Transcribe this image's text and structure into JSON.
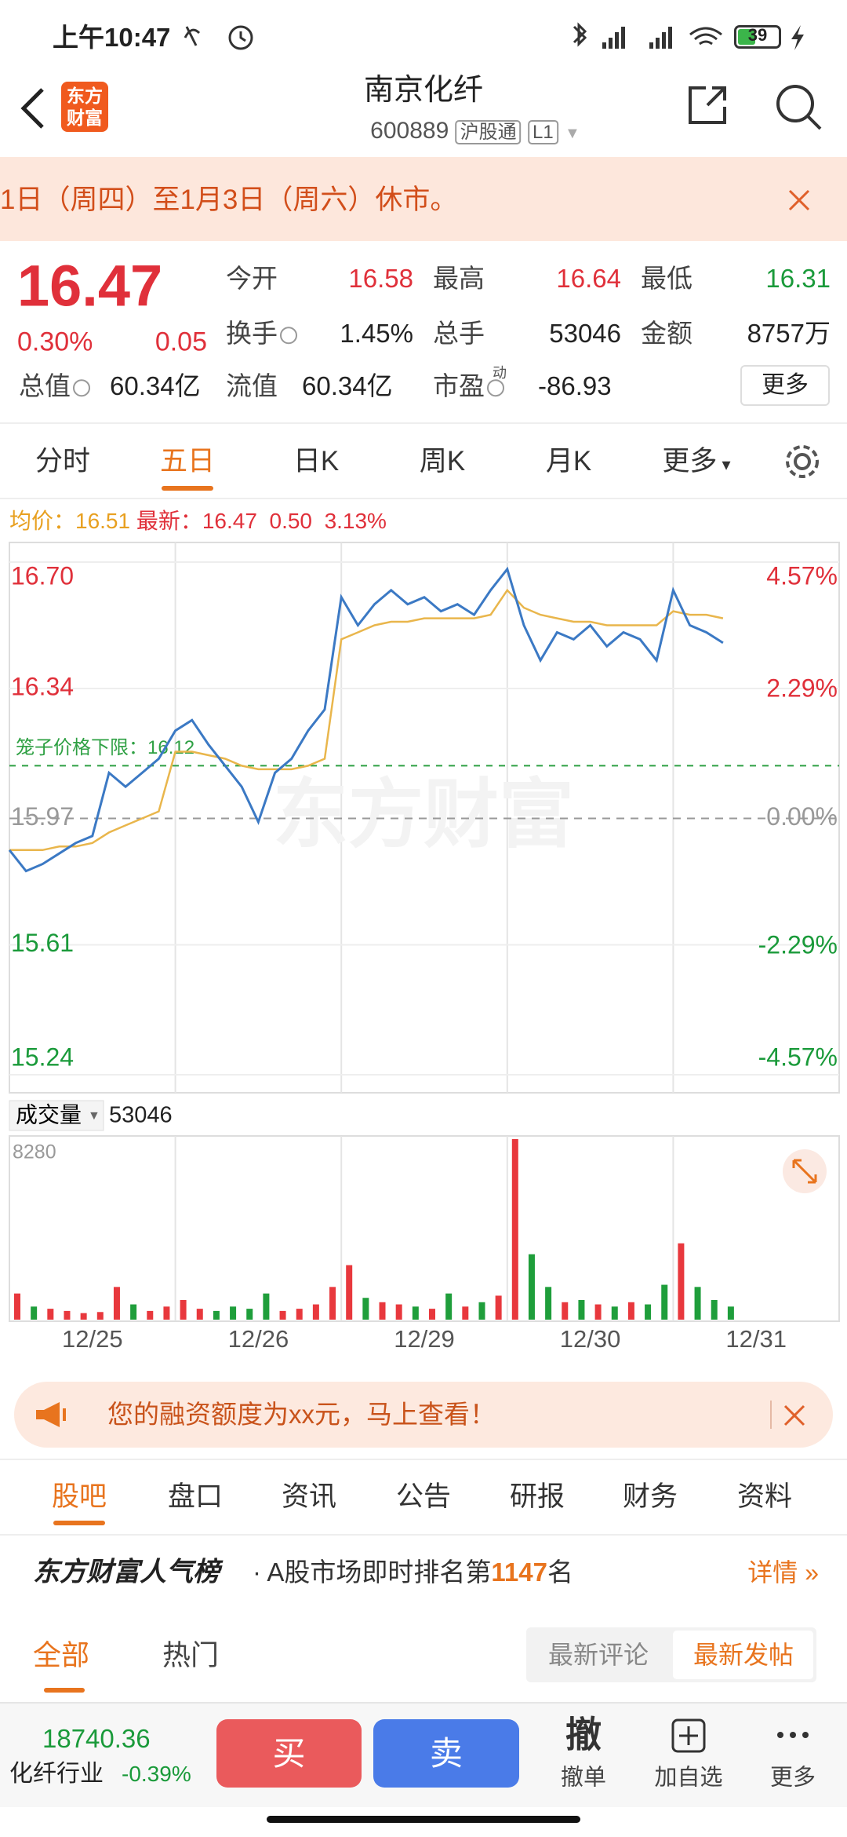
{
  "status_bar": {
    "time": "上午10:47",
    "battery": "39"
  },
  "header": {
    "logo": "东方财富",
    "title": "南京化纤",
    "code": "600889",
    "badge": "沪股通",
    "level": "L1"
  },
  "notice": {
    "text": "1日（周四）至1月3日（周六）休市。"
  },
  "quote": {
    "price": "16.47",
    "change_pct": "0.30%",
    "change": "0.05",
    "stats": [
      [
        "今开",
        "16.58"
      ],
      [
        "最高",
        "16.64"
      ],
      [
        "最低",
        "16.31"
      ],
      [
        "换手",
        "1.45%"
      ],
      [
        "总手",
        "53046"
      ],
      [
        "金额",
        "8757万"
      ],
      [
        "总值",
        "60.34亿"
      ],
      [
        "流值",
        "60.34亿"
      ],
      [
        "市盈",
        "-86.93"
      ]
    ],
    "pe_tag": "动",
    "more": "更多"
  },
  "period_tabs": [
    "分时",
    "五日",
    "日K",
    "周K",
    "月K",
    "更多"
  ],
  "chart_data": [
    {
      "type": "line",
      "watermark": "东方财富",
      "info": {
        "avg": "均价：16.51",
        "latest": "最新：16.47",
        "change": "0.50",
        "change_pct": "3.13%"
      },
      "x": [
        0,
        0.1,
        0.2,
        0.3,
        0.4,
        0.5,
        0.6,
        0.7,
        0.8,
        0.9,
        1,
        1.1,
        1.2,
        1.3,
        1.4,
        1.5,
        1.6,
        1.7,
        1.8,
        1.9,
        2,
        2.1,
        2.2,
        2.3,
        2.4,
        2.5,
        2.6,
        2.7,
        2.8,
        2.9,
        3,
        3.1,
        3.2,
        3.3,
        3.4,
        3.5,
        3.6,
        3.7,
        3.8,
        3.9,
        4,
        4.1,
        4.2,
        4.3
      ],
      "xlim": [
        0,
        5
      ],
      "xticks": [
        {
          "value": 0.5,
          "label": "12/25"
        },
        {
          "value": 1.5,
          "label": "12/26"
        },
        {
          "value": 2.5,
          "label": "12/29"
        },
        {
          "value": 3.5,
          "label": "12/30"
        },
        {
          "value": 4.5,
          "label": "12/31"
        }
      ],
      "ylim": [
        15.24,
        16.7
      ],
      "yticks": [
        15.24,
        15.61,
        15.97,
        16.34,
        {
          "value": 16.7,
          "label": "16.70"
        }
      ],
      "y2lim": [
        -4.57,
        4.57
      ],
      "y2ticks": [
        {
          "value": -4.57,
          "label": "-4.57%"
        },
        {
          "value": -2.29,
          "label": "-2.29%"
        },
        {
          "value": 0,
          "label": "0.00%"
        },
        {
          "value": 2.29,
          "label": "2.29%"
        },
        {
          "value": 4.57,
          "label": "4.57%"
        }
      ],
      "cage_line": {
        "label": "笼子价格下限：16.12",
        "value": 16.12,
        "color": "#2ea043"
      },
      "series": [
        {
          "color": "#3b79c4",
          "values": [
            15.88,
            15.82,
            15.84,
            15.87,
            15.9,
            15.92,
            16.1,
            16.06,
            16.1,
            16.14,
            16.22,
            16.25,
            16.18,
            16.12,
            16.06,
            15.96,
            16.1,
            16.14,
            16.22,
            16.28,
            16.6,
            16.52,
            16.58,
            16.62,
            16.58,
            16.6,
            16.56,
            16.58,
            16.55,
            16.62,
            16.68,
            16.52,
            16.42,
            16.5,
            16.48,
            16.52,
            16.46,
            16.5,
            16.48,
            16.42,
            16.62,
            16.52,
            16.5,
            16.47
          ]
        },
        {
          "color": "#e9b64c",
          "values": [
            15.88,
            15.88,
            15.88,
            15.89,
            15.89,
            15.9,
            15.93,
            15.95,
            15.97,
            15.99,
            16.16,
            16.16,
            16.15,
            16.14,
            16.12,
            16.11,
            16.11,
            16.11,
            16.12,
            16.14,
            16.48,
            16.5,
            16.52,
            16.53,
            16.53,
            16.54,
            16.54,
            16.54,
            16.54,
            16.55,
            16.62,
            16.57,
            16.55,
            16.54,
            16.53,
            16.53,
            16.52,
            16.52,
            16.52,
            16.52,
            16.56,
            16.55,
            16.55,
            16.54
          ]
        }
      ]
    },
    {
      "type": "bar",
      "label": "成交量",
      "total": "53046",
      "ylim": [
        0,
        8280
      ],
      "yticks": [
        8280
      ],
      "up_color": "#e8383d",
      "down_color": "#1f9e3b",
      "values": [
        1200,
        600,
        500,
        400,
        300,
        350,
        1500,
        700,
        400,
        600,
        900,
        500,
        400,
        600,
        500,
        1200,
        400,
        500,
        700,
        1500,
        2500,
        1000,
        800,
        700,
        600,
        500,
        1200,
        600,
        800,
        1100,
        8280,
        3000,
        1500,
        800,
        900,
        700,
        600,
        800,
        700,
        1600,
        3500,
        1500,
        900,
        600
      ]
    }
  ],
  "ad": {
    "text": "您的融资额度为xx元，马上查看！"
  },
  "section_tabs": [
    "股吧",
    "盘口",
    "资讯",
    "公告",
    "研报",
    "财务",
    "资料"
  ],
  "popularity": {
    "title": "东方财富人气榜",
    "prefix": "· A股市场即时排名第",
    "rank": "1147",
    "suffix": "名",
    "link": "详情 »"
  },
  "sub_tabs": {
    "all": "全部",
    "hot": "热门",
    "latest_comment": "最新评论",
    "latest_post": "最新发帖"
  },
  "bottom_bar": {
    "index": "18740.36",
    "industry": "化纤行业",
    "industry_change": "-0.39%",
    "buy": "买",
    "sell": "卖",
    "cancel_icon": "撤",
    "cancel": "撤单",
    "watch": "加自选",
    "more": "更多"
  }
}
